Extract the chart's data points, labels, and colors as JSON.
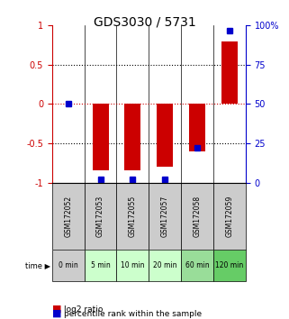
{
  "title": "GDS3030 / 5731",
  "samples": [
    "GSM172052",
    "GSM172053",
    "GSM172055",
    "GSM172057",
    "GSM172058",
    "GSM172059"
  ],
  "time_labels": [
    "0 min",
    "5 min",
    "10 min",
    "20 min",
    "60 min",
    "120 min"
  ],
  "log2_ratio": [
    0.0,
    -0.85,
    -0.85,
    -0.8,
    -0.6,
    0.8
  ],
  "percentile_rank": [
    50,
    2,
    2,
    2,
    22,
    97
  ],
  "ylim_left": [
    -1,
    1
  ],
  "ylim_right": [
    0,
    100
  ],
  "yticks_left": [
    -1,
    -0.5,
    0,
    0.5,
    1
  ],
  "yticks_right": [
    0,
    25,
    50,
    75,
    100
  ],
  "bar_color": "#cc0000",
  "dot_color": "#0000cc",
  "zero_line_color": "#cc0000",
  "grid_color": "#000000",
  "time_bg_colors": [
    "#cccccc",
    "#ccffcc",
    "#ccffcc",
    "#ccffcc",
    "#99dd99",
    "#66cc66"
  ],
  "sample_bg_color": "#cccccc",
  "legend_log2_color": "#cc0000",
  "legend_pct_color": "#0000cc"
}
